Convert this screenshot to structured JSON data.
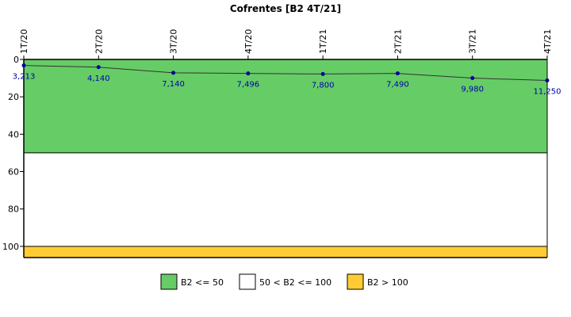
{
  "chart_data": {
    "type": "line",
    "title": "Cofrentes [B2 4T/21]",
    "categories": [
      "1T/20",
      "2T/20",
      "3T/20",
      "4T/20",
      "1T/21",
      "2T/21",
      "3T/21",
      "4T/21"
    ],
    "values": [
      3.213,
      4.14,
      7.14,
      7.496,
      7.8,
      7.49,
      9.98,
      11.25
    ],
    "data_labels": [
      "3,213",
      "4,140",
      "7,140",
      "7,496",
      "7,800",
      "7,490",
      "9,980",
      "11,250"
    ],
    "ylim": [
      0,
      106
    ],
    "y_inverted": true,
    "y_ticks": [
      0,
      20,
      40,
      60,
      80,
      100
    ],
    "bands": [
      {
        "from": 0,
        "to": 50,
        "color": "#66cc66",
        "label": "B2 <= 50"
      },
      {
        "from": 50,
        "to": 100,
        "color": "#ffffff",
        "label": "50 < B2 <= 100"
      },
      {
        "from": 100,
        "to": 106,
        "color": "#ffcc33",
        "label": "B2 > 100"
      }
    ],
    "line_color": "#333333",
    "marker_color": "#000099",
    "legend_position": "bottom"
  }
}
